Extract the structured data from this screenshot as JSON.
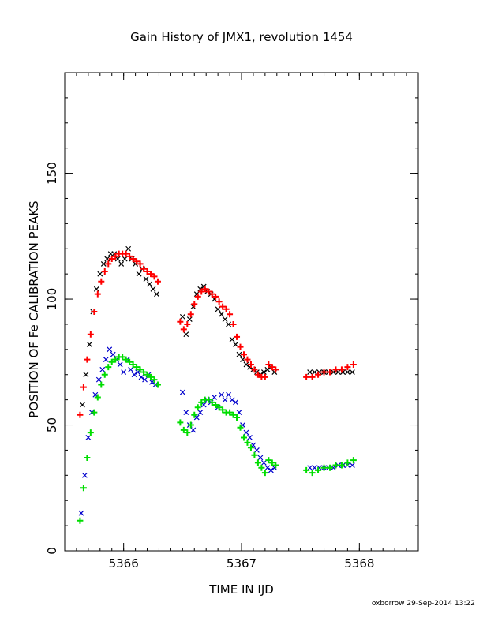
{
  "title": "Gain History of JMX1, revolution 1454",
  "footer": "oxborrow 29-Sep-2014 13:22",
  "chart_data": {
    "type": "scatter",
    "title": "Gain History of JMX1, revolution 1454",
    "xlabel": "TIME IN IJD",
    "ylabel": "POSITION OF Fe CALIBRATION PEAKS",
    "xlim": [
      5365.5,
      5368.5
    ],
    "ylim": [
      0,
      190
    ],
    "xticks": [
      5366,
      5367,
      5368
    ],
    "yticks": [
      0,
      50,
      100,
      150
    ],
    "xtick_labels": [
      "5366",
      "5367",
      "5368"
    ],
    "ytick_labels": [
      "0",
      "50",
      "100",
      "150"
    ],
    "grid": false,
    "colors": {
      "upper_obs": "#000000",
      "upper_fit": "#ff0000",
      "lower_obs": "#0000cc",
      "lower_fit": "#00dd00"
    },
    "series": [
      {
        "marker": "x",
        "color": "#000000",
        "x": [
          5365.65,
          5365.68,
          5365.71,
          5365.74,
          5365.77,
          5365.8,
          5365.83,
          5365.86,
          5365.89,
          5365.92,
          5365.95,
          5365.98,
          5366.01,
          5366.04,
          5366.07,
          5366.1,
          5366.13,
          5366.16,
          5366.19,
          5366.22,
          5366.25,
          5366.28,
          5366.5,
          5366.53,
          5366.56,
          5366.59,
          5366.62,
          5366.65,
          5366.68,
          5366.71,
          5366.74,
          5366.77,
          5366.8,
          5366.83,
          5366.86,
          5366.89,
          5366.92,
          5366.95,
          5366.98,
          5367.01,
          5367.04,
          5367.07,
          5367.1,
          5367.13,
          5367.16,
          5367.19,
          5367.22,
          5367.25,
          5367.28,
          5367.58,
          5367.62,
          5367.66,
          5367.7,
          5367.74,
          5367.78,
          5367.82,
          5367.86,
          5367.9,
          5367.94
        ],
        "y": [
          58,
          70,
          82,
          95,
          104,
          110,
          114,
          116,
          118,
          118,
          116,
          114,
          116,
          120,
          116,
          114,
          110,
          112,
          108,
          106,
          104,
          102,
          93,
          86,
          92,
          97,
          102,
          104,
          105,
          103,
          102,
          100,
          96,
          94,
          92,
          90,
          84,
          82,
          78,
          76,
          74,
          73,
          72,
          71,
          70,
          71,
          72,
          73,
          71,
          71,
          71,
          71,
          71,
          71,
          71,
          71,
          71,
          71,
          71
        ]
      },
      {
        "marker": "+",
        "color": "#ff0000",
        "x": [
          5365.63,
          5365.66,
          5365.69,
          5365.72,
          5365.75,
          5365.78,
          5365.81,
          5365.84,
          5365.87,
          5365.9,
          5365.93,
          5365.96,
          5365.99,
          5366.02,
          5366.05,
          5366.08,
          5366.11,
          5366.14,
          5366.17,
          5366.2,
          5366.23,
          5366.26,
          5366.29,
          5366.48,
          5366.51,
          5366.54,
          5366.57,
          5366.6,
          5366.63,
          5366.66,
          5366.69,
          5366.72,
          5366.75,
          5366.78,
          5366.81,
          5366.84,
          5366.87,
          5366.9,
          5366.93,
          5366.96,
          5366.99,
          5367.02,
          5367.05,
          5367.08,
          5367.11,
          5367.14,
          5367.17,
          5367.2,
          5367.23,
          5367.26,
          5367.29,
          5367.55,
          5367.6,
          5367.65,
          5367.7,
          5367.75,
          5367.8,
          5367.85,
          5367.9,
          5367.95
        ],
        "y": [
          54,
          65,
          76,
          86,
          95,
          102,
          107,
          111,
          114,
          116,
          117,
          118,
          118,
          118,
          117,
          116,
          115,
          114,
          112,
          111,
          110,
          109,
          107,
          91,
          88,
          90,
          94,
          98,
          101,
          103,
          104,
          103,
          102,
          101,
          99,
          97,
          96,
          94,
          90,
          85,
          81,
          78,
          76,
          74,
          72,
          70,
          69,
          69,
          74,
          73,
          72,
          69,
          69,
          70,
          71,
          71,
          72,
          72,
          73,
          74
        ]
      },
      {
        "marker": "x",
        "color": "#0000cc",
        "x": [
          5365.64,
          5365.67,
          5365.7,
          5365.73,
          5365.76,
          5365.79,
          5365.82,
          5365.85,
          5365.88,
          5365.91,
          5365.94,
          5365.97,
          5366.0,
          5366.03,
          5366.06,
          5366.09,
          5366.12,
          5366.15,
          5366.18,
          5366.21,
          5366.24,
          5366.27,
          5366.5,
          5366.53,
          5366.56,
          5366.59,
          5366.62,
          5366.65,
          5366.68,
          5366.71,
          5366.74,
          5366.77,
          5366.8,
          5366.83,
          5366.86,
          5366.89,
          5366.92,
          5366.95,
          5366.98,
          5367.01,
          5367.04,
          5367.07,
          5367.1,
          5367.13,
          5367.16,
          5367.19,
          5367.22,
          5367.25,
          5367.28,
          5367.58,
          5367.62,
          5367.66,
          5367.7,
          5367.74,
          5367.78,
          5367.82,
          5367.86,
          5367.9,
          5367.94
        ],
        "y": [
          15,
          30,
          45,
          55,
          62,
          68,
          72,
          76,
          80,
          78,
          76,
          74,
          71,
          76,
          72,
          70,
          71,
          69,
          68,
          70,
          67,
          66,
          63,
          55,
          50,
          48,
          53,
          55,
          58,
          60,
          59,
          61,
          57,
          62,
          60,
          62,
          60,
          59,
          55,
          50,
          47,
          45,
          42,
          40,
          37,
          35,
          33,
          32,
          33,
          33,
          33,
          33,
          33,
          33,
          33,
          34,
          34,
          34,
          34
        ]
      },
      {
        "marker": "+",
        "color": "#00dd00",
        "x": [
          5365.63,
          5365.66,
          5365.69,
          5365.72,
          5365.75,
          5365.78,
          5365.81,
          5365.84,
          5365.87,
          5365.9,
          5365.93,
          5365.96,
          5365.99,
          5366.02,
          5366.05,
          5366.08,
          5366.11,
          5366.14,
          5366.17,
          5366.2,
          5366.23,
          5366.26,
          5366.29,
          5366.48,
          5366.51,
          5366.54,
          5366.57,
          5366.6,
          5366.63,
          5366.66,
          5366.69,
          5366.72,
          5366.75,
          5366.78,
          5366.81,
          5366.84,
          5366.87,
          5366.9,
          5366.93,
          5366.96,
          5366.99,
          5367.02,
          5367.05,
          5367.08,
          5367.11,
          5367.14,
          5367.17,
          5367.2,
          5367.23,
          5367.26,
          5367.29,
          5367.55,
          5367.6,
          5367.65,
          5367.7,
          5367.75,
          5367.8,
          5367.85,
          5367.9,
          5367.95
        ],
        "y": [
          12,
          25,
          37,
          47,
          55,
          61,
          66,
          70,
          73,
          75,
          76,
          77,
          77,
          76,
          75,
          74,
          73,
          72,
          71,
          70,
          69,
          68,
          66,
          51,
          48,
          47,
          50,
          54,
          57,
          59,
          60,
          60,
          59,
          58,
          57,
          56,
          55,
          55,
          54,
          53,
          49,
          45,
          43,
          41,
          38,
          35,
          33,
          31,
          36,
          35,
          34,
          32,
          31,
          32,
          33,
          33,
          34,
          34,
          35,
          36
        ]
      }
    ]
  }
}
